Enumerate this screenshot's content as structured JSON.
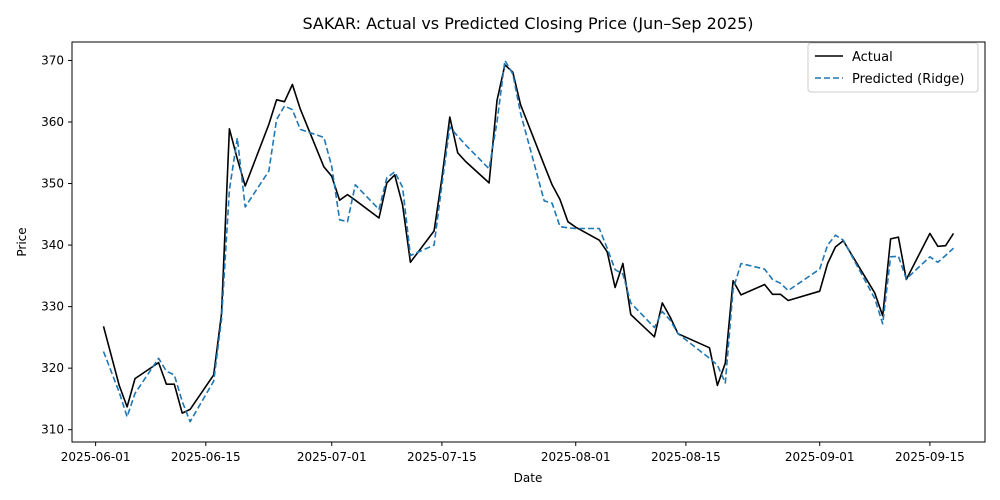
{
  "chart_data": {
    "type": "line",
    "title": "SAKAR: Actual vs Predicted Closing Price (Jun–Sep 2025)",
    "xlabel": "Date",
    "ylabel": "Price",
    "x_type": "date",
    "xlim": [
      "2025-05-29",
      "2025-09-22"
    ],
    "ylim": [
      308,
      373
    ],
    "x_ticks": [
      "2025-06-01",
      "2025-06-15",
      "2025-07-01",
      "2025-07-15",
      "2025-08-01",
      "2025-08-15",
      "2025-09-01",
      "2025-09-15"
    ],
    "y_ticks": [
      310,
      320,
      330,
      340,
      350,
      360,
      370
    ],
    "grid": false,
    "legend_position": "top-right",
    "x": [
      "2025-06-02",
      "2025-06-04",
      "2025-06-05",
      "2025-06-06",
      "2025-06-09",
      "2025-06-10",
      "2025-06-11",
      "2025-06-12",
      "2025-06-13",
      "2025-06-16",
      "2025-06-17",
      "2025-06-18",
      "2025-06-19",
      "2025-06-20",
      "2025-06-23",
      "2025-06-24",
      "2025-06-25",
      "2025-06-26",
      "2025-06-27",
      "2025-06-30",
      "2025-07-01",
      "2025-07-02",
      "2025-07-03",
      "2025-07-04",
      "2025-07-07",
      "2025-07-08",
      "2025-07-09",
      "2025-07-10",
      "2025-07-11",
      "2025-07-14",
      "2025-07-15",
      "2025-07-16",
      "2025-07-17",
      "2025-07-18",
      "2025-07-21",
      "2025-07-22",
      "2025-07-23",
      "2025-07-24",
      "2025-07-25",
      "2025-07-28",
      "2025-07-29",
      "2025-07-30",
      "2025-07-31",
      "2025-08-01",
      "2025-08-04",
      "2025-08-05",
      "2025-08-06",
      "2025-08-07",
      "2025-08-08",
      "2025-08-11",
      "2025-08-12",
      "2025-08-13",
      "2025-08-14",
      "2025-08-18",
      "2025-08-19",
      "2025-08-20",
      "2025-08-21",
      "2025-08-22",
      "2025-08-25",
      "2025-08-26",
      "2025-08-27",
      "2025-08-28",
      "2025-09-01",
      "2025-09-02",
      "2025-09-03",
      "2025-09-04",
      "2025-09-08",
      "2025-09-09",
      "2025-09-10",
      "2025-09-11",
      "2025-09-12",
      "2025-09-15",
      "2025-09-16",
      "2025-09-17",
      "2025-09-18"
    ],
    "series": [
      {
        "name": "Actual",
        "color": "#000000",
        "dash": "solid",
        "values": [
          326.8,
          317.2,
          313.7,
          318.3,
          320.9,
          317.4,
          317.4,
          312.7,
          313.3,
          318.9,
          328.8,
          358.9,
          354.0,
          349.6,
          359.6,
          363.6,
          363.3,
          366.1,
          362.1,
          352.7,
          351.2,
          347.3,
          348.2,
          347.3,
          344.4,
          350.1,
          351.4,
          346.5,
          337.2,
          342.3,
          350.9,
          360.8,
          355.0,
          353.6,
          350.1,
          363.5,
          369.3,
          368.1,
          362.8,
          353.0,
          349.8,
          347.4,
          343.8,
          342.9,
          340.8,
          338.9,
          333.1,
          337.0,
          328.7,
          325.1,
          330.6,
          328.3,
          325.6,
          323.3,
          317.2,
          320.8,
          334.2,
          331.9,
          333.6,
          332.0,
          332.0,
          331.0,
          332.5,
          337.0,
          339.7,
          340.7,
          332.2,
          328.5,
          341.0,
          341.3,
          334.4,
          341.9,
          339.8,
          339.9,
          341.9
        ]
      },
      {
        "name": "Predicted (Ridge)",
        "color": "#1f77b4",
        "dash": "dashed",
        "values": [
          322.7,
          316.1,
          312.1,
          315.9,
          321.6,
          319.5,
          318.9,
          314.6,
          311.3,
          317.9,
          327.9,
          349.0,
          357.4,
          346.2,
          352.0,
          360.4,
          362.6,
          362.0,
          358.8,
          357.5,
          352.8,
          344.1,
          343.8,
          349.8,
          345.8,
          350.9,
          351.9,
          349.4,
          338.3,
          340.0,
          349.8,
          359.2,
          357.7,
          356.3,
          352.4,
          360.0,
          370.0,
          367.8,
          361.4,
          347.2,
          346.8,
          343.0,
          342.8,
          342.7,
          342.7,
          339.5,
          336.0,
          335.3,
          330.6,
          326.6,
          329.2,
          327.8,
          325.6,
          321.6,
          320.5,
          317.6,
          332.8,
          337.0,
          336.1,
          334.4,
          333.8,
          332.6,
          336.1,
          340.0,
          341.6,
          340.8,
          331.3,
          327.2,
          338.1,
          338.2,
          334.5,
          338.1,
          337.2,
          338.3,
          339.5
        ]
      }
    ]
  }
}
